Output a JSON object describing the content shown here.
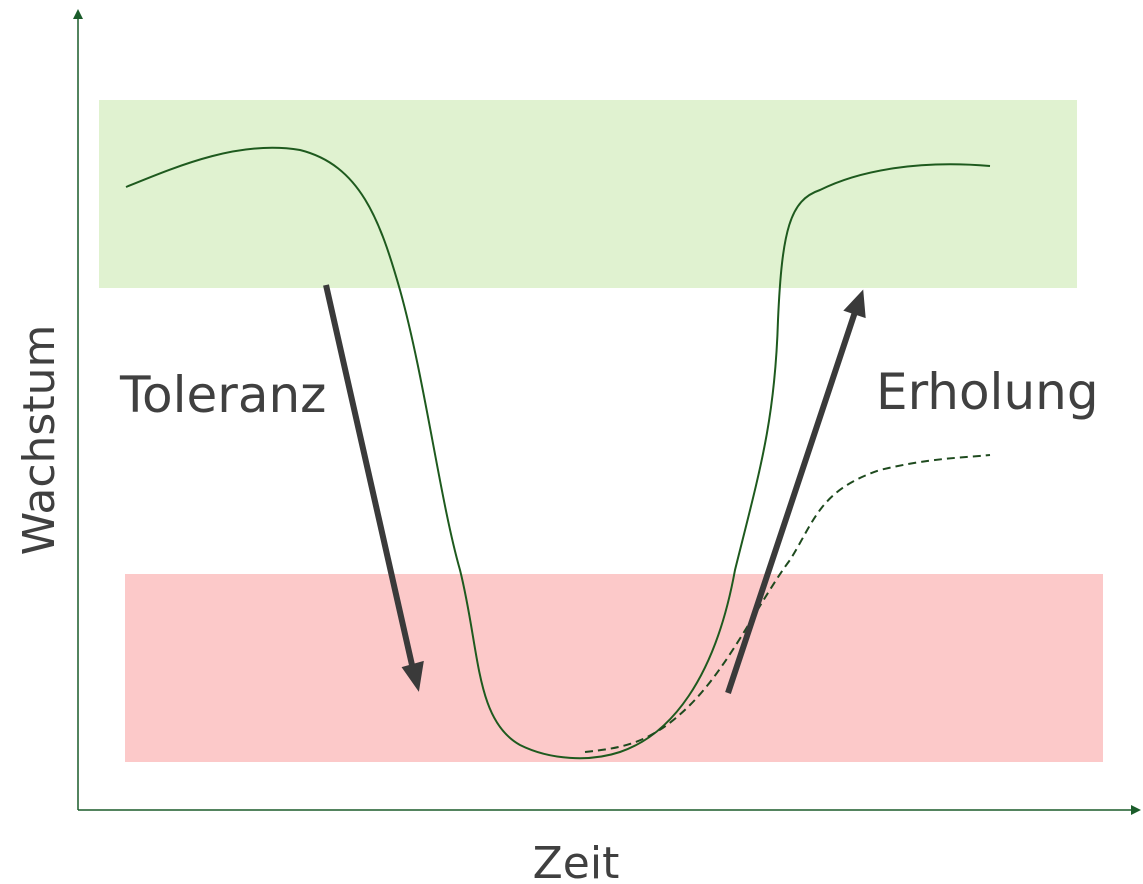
{
  "axes": {
    "y_label": "Wachstum",
    "x_label": "Zeit"
  },
  "annotations": {
    "tolerance": "Toleranz",
    "recovery": "Erholung"
  }
}
